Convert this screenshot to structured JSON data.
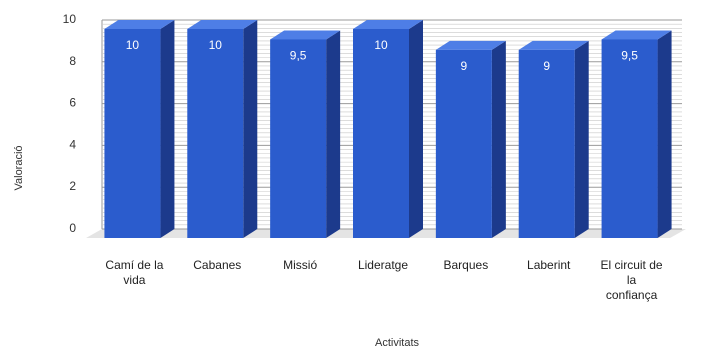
{
  "chart_data": {
    "type": "bar",
    "categories": [
      [
        "Camí de la",
        "vida"
      ],
      [
        "Cabanes"
      ],
      [
        "Missió"
      ],
      [
        "Lideratge"
      ],
      [
        "Barques"
      ],
      [
        "Laberint"
      ],
      [
        "El circuit de",
        "la",
        "confiança"
      ]
    ],
    "values": [
      10,
      10,
      9.5,
      10,
      9,
      9,
      9.5
    ],
    "value_labels": [
      "10",
      "10",
      "9,5",
      "10",
      "9",
      "9",
      "9,5"
    ],
    "xlabel": "Activitats",
    "ylabel": "Valoració",
    "ylim": [
      0,
      10
    ],
    "yticks": [
      0,
      2,
      4,
      6,
      8,
      10
    ],
    "grid": true,
    "style": "3d",
    "colors": {
      "bar_front": "#2b5ccd",
      "bar_side": "#1c3a8c",
      "bar_top": "#4e7ee6",
      "grid": "#c8c8c8",
      "floor": "#e4e4e4"
    }
  }
}
